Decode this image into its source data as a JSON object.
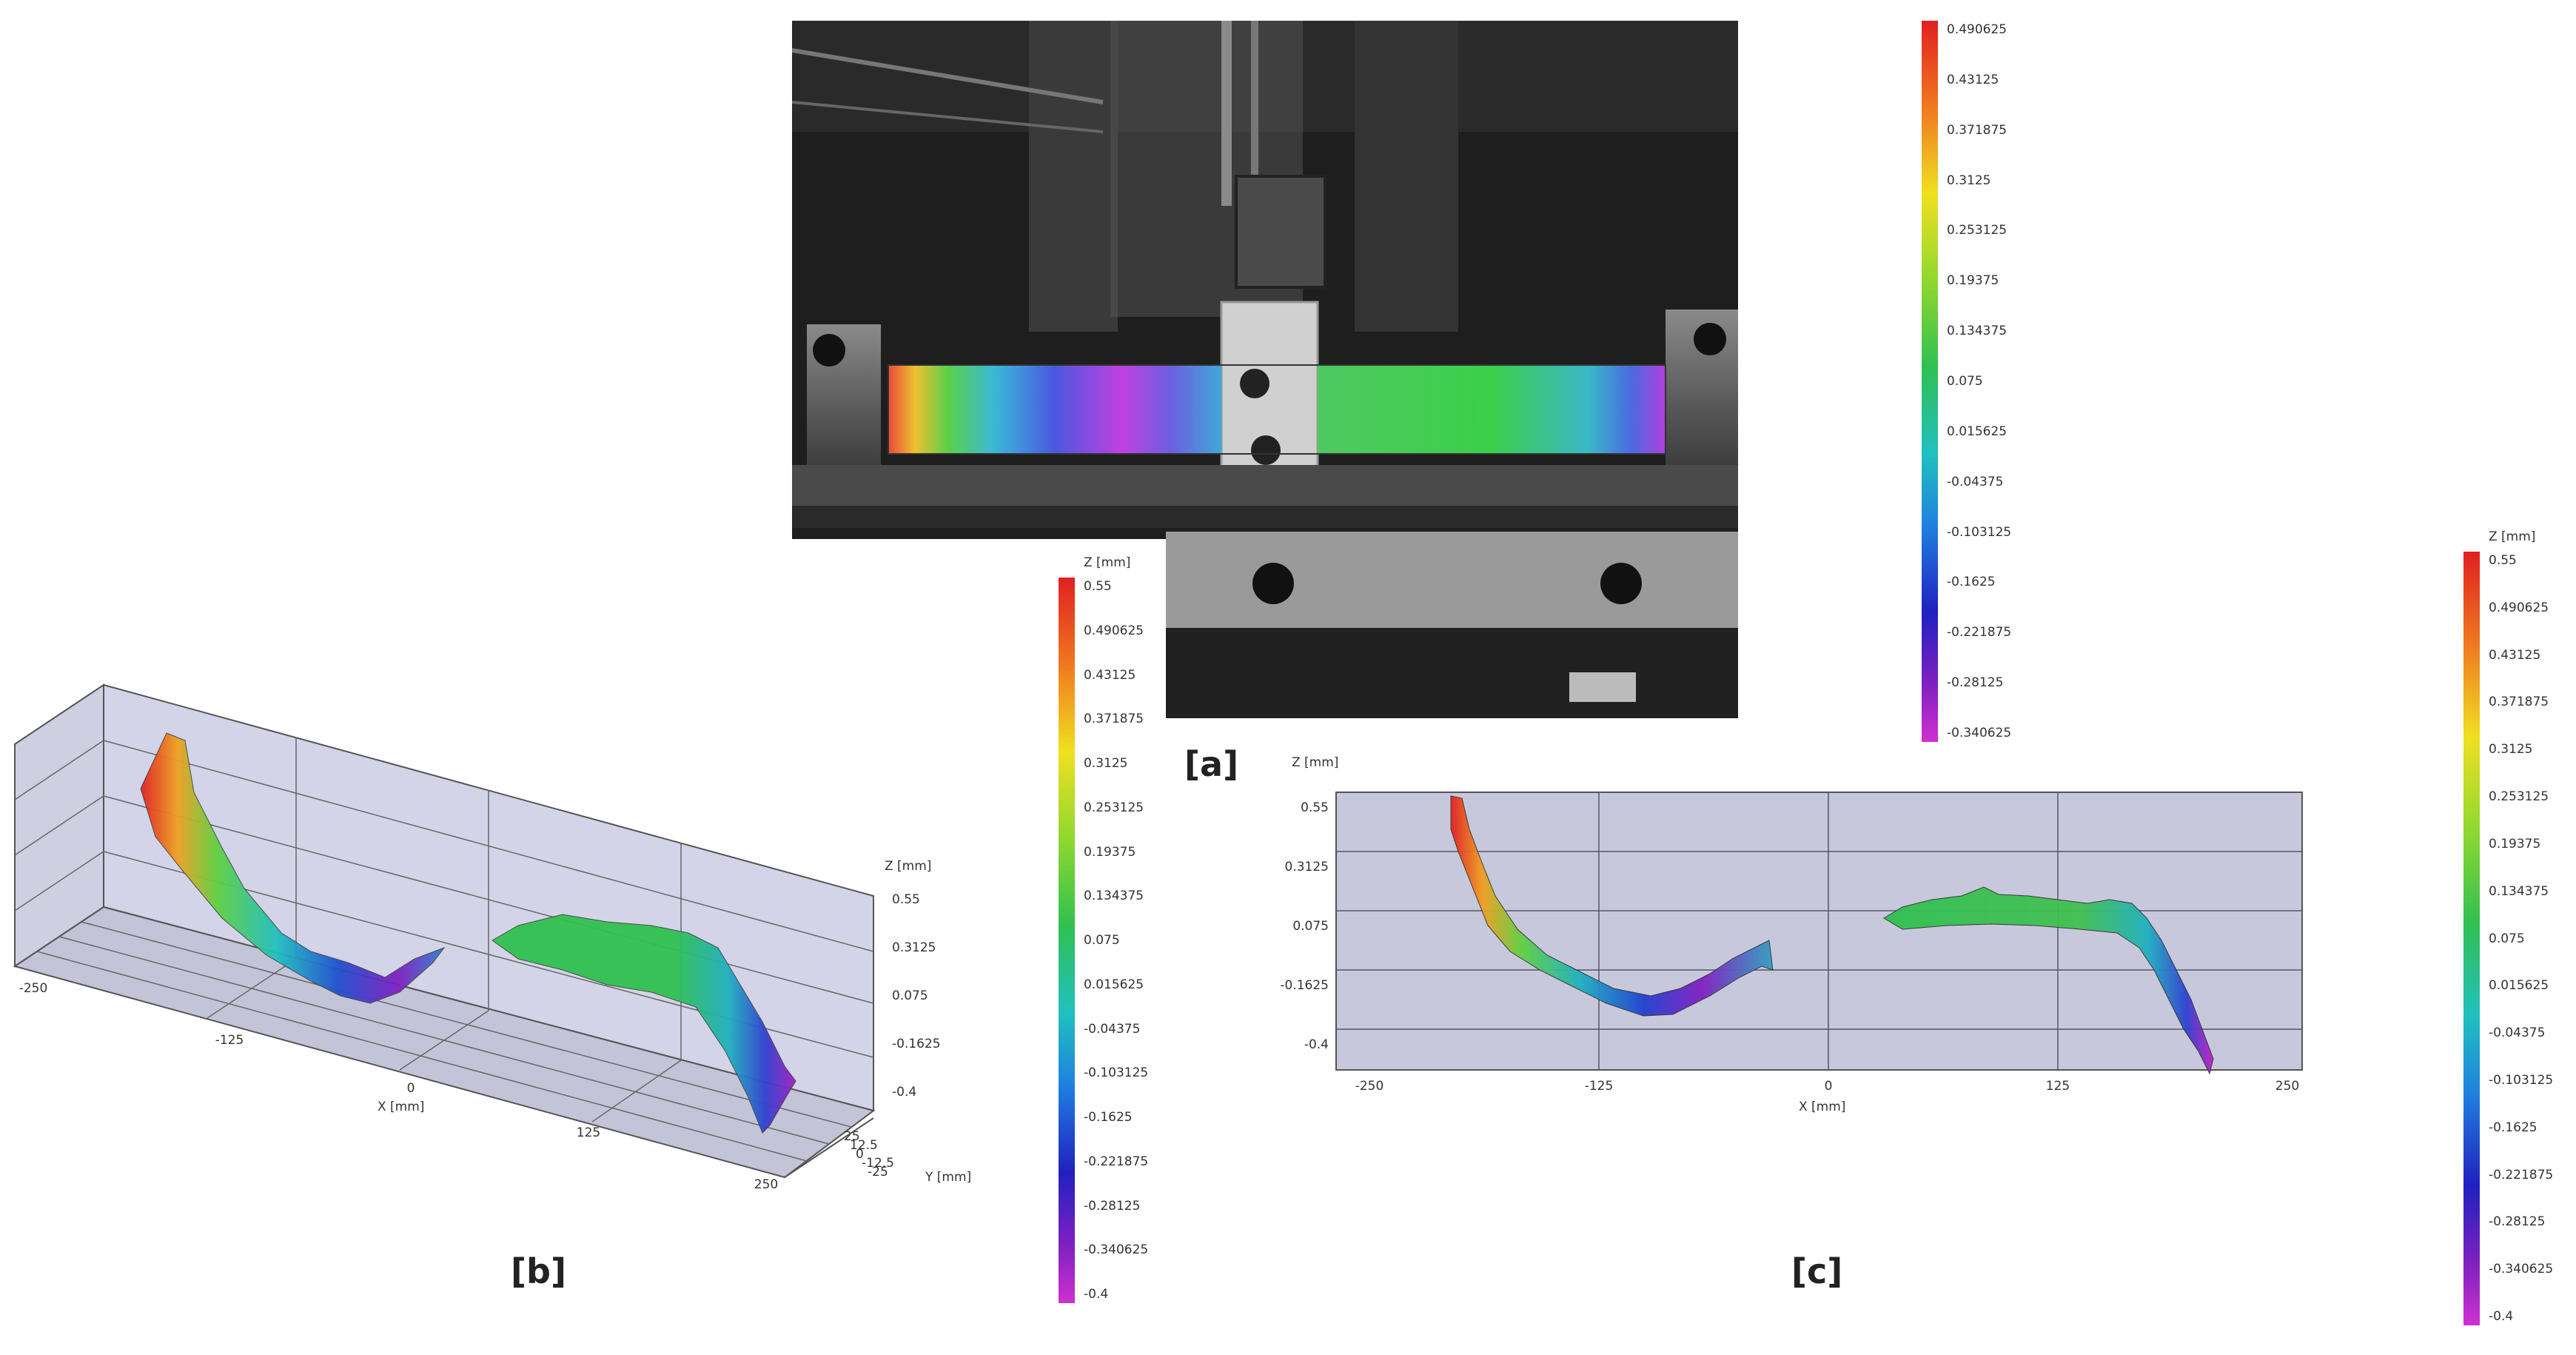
{
  "panels": {
    "a": {
      "label": "[a]"
    },
    "b": {
      "label": "[b]"
    },
    "c": {
      "label": "[c]"
    }
  },
  "colorbar_a": {
    "ticks": [
      "0.490625",
      "0.43125",
      "0.371875",
      "0.3125",
      "0.253125",
      "0.19375",
      "0.134375",
      "0.075",
      "0.015625",
      "-0.04375",
      "-0.103125",
      "-0.1625",
      "-0.221875",
      "-0.28125",
      "-0.340625"
    ]
  },
  "colorbar_b": {
    "title": "Z [mm]",
    "ticks": [
      "0.55",
      "0.490625",
      "0.43125",
      "0.371875",
      "0.3125",
      "0.253125",
      "0.19375",
      "0.134375",
      "0.075",
      "0.015625",
      "-0.04375",
      "-0.103125",
      "-0.1625",
      "-0.221875",
      "-0.28125",
      "-0.340625",
      "-0.4"
    ]
  },
  "colorbar_c": {
    "title": "Z [mm]",
    "ticks": [
      "0.55",
      "0.490625",
      "0.43125",
      "0.371875",
      "0.3125",
      "0.253125",
      "0.19375",
      "0.134375",
      "0.075",
      "0.015625",
      "-0.04375",
      "-0.103125",
      "-0.1625",
      "-0.221875",
      "-0.28125",
      "-0.340625",
      "-0.4"
    ]
  },
  "plot_b": {
    "z_title": "Z [mm]",
    "z_ticks": [
      "0.55",
      "0.3125",
      "0.075",
      "-0.1625",
      "-0.4"
    ],
    "x_ticks": [
      "-250",
      "-125",
      "0",
      "125",
      "250"
    ],
    "x_title": "X [mm]",
    "y_ticks": [
      "25",
      "12.5",
      "0",
      "-12.5",
      "-25"
    ],
    "y_title": "Y [mm]"
  },
  "plot_c": {
    "z_title": "Z [mm]",
    "z_ticks": [
      "0.55",
      "0.3125",
      "0.075",
      "-0.1625",
      "-0.4"
    ],
    "x_ticks": [
      "-250",
      "-125",
      "0",
      "125",
      "250"
    ],
    "x_title": "X [mm]"
  },
  "colors": {
    "plot_bg": "#c8c8dc",
    "grid": "#555566"
  }
}
